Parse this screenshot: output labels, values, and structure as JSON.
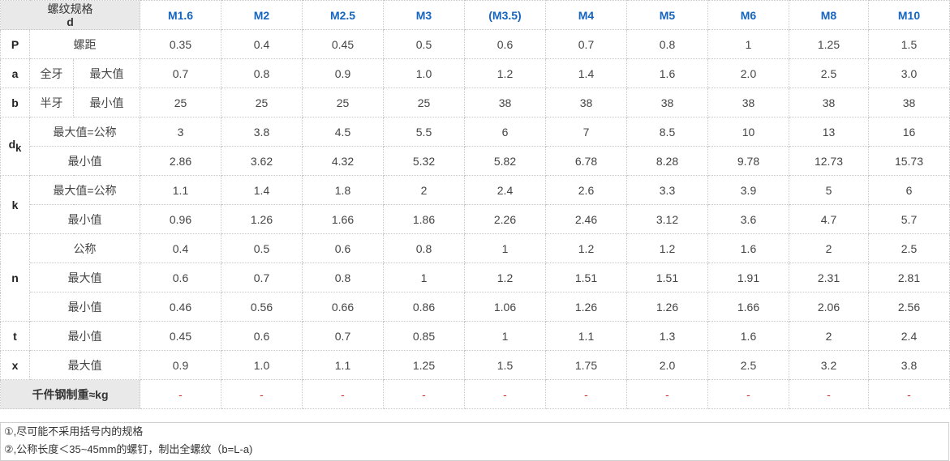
{
  "header": {
    "corner_line1": "螺纹规格",
    "corner_line2": "d",
    "sizes": [
      "M1.6",
      "M2",
      "M2.5",
      "M3",
      "(M3.5)",
      "M4",
      "M5",
      "M6",
      "M8",
      "M10"
    ]
  },
  "symbols": {
    "P": "P",
    "a": "a",
    "b": "b",
    "dk_main": "d",
    "dk_sub": "k",
    "k": "k",
    "n": "n",
    "t": "t",
    "x": "x"
  },
  "labels": {
    "pitch": "螺距",
    "full_thread": "全牙",
    "half_thread": "半牙",
    "max": "最大值",
    "min": "最小值",
    "max_nominal": "最大值=公称",
    "nominal": "公称",
    "weight": "千件钢制重≈kg"
  },
  "rows": {
    "P": [
      "0.35",
      "0.4",
      "0.45",
      "0.5",
      "0.6",
      "0.7",
      "0.8",
      "1",
      "1.25",
      "1.5"
    ],
    "a_max": [
      "0.7",
      "0.8",
      "0.9",
      "1.0",
      "1.2",
      "1.4",
      "1.6",
      "2.0",
      "2.5",
      "3.0"
    ],
    "b_min": [
      "25",
      "25",
      "25",
      "25",
      "38",
      "38",
      "38",
      "38",
      "38",
      "38"
    ],
    "dk_max": [
      "3",
      "3.8",
      "4.5",
      "5.5",
      "6",
      "7",
      "8.5",
      "10",
      "13",
      "16"
    ],
    "dk_min": [
      "2.86",
      "3.62",
      "4.32",
      "5.32",
      "5.82",
      "6.78",
      "8.28",
      "9.78",
      "12.73",
      "15.73"
    ],
    "k_max": [
      "1.1",
      "1.4",
      "1.8",
      "2",
      "2.4",
      "2.6",
      "3.3",
      "3.9",
      "5",
      "6"
    ],
    "k_min": [
      "0.96",
      "1.26",
      "1.66",
      "1.86",
      "2.26",
      "2.46",
      "3.12",
      "3.6",
      "4.7",
      "5.7"
    ],
    "n_nom": [
      "0.4",
      "0.5",
      "0.6",
      "0.8",
      "1",
      "1.2",
      "1.2",
      "1.6",
      "2",
      "2.5"
    ],
    "n_max": [
      "0.6",
      "0.7",
      "0.8",
      "1",
      "1.2",
      "1.51",
      "1.51",
      "1.91",
      "2.31",
      "2.81"
    ],
    "n_min": [
      "0.46",
      "0.56",
      "0.66",
      "0.86",
      "1.06",
      "1.26",
      "1.26",
      "1.66",
      "2.06",
      "2.56"
    ],
    "t_min": [
      "0.45",
      "0.6",
      "0.7",
      "0.85",
      "1",
      "1.1",
      "1.3",
      "1.6",
      "2",
      "2.4"
    ],
    "x_max": [
      "0.9",
      "1.0",
      "1.1",
      "1.25",
      "1.5",
      "1.75",
      "2.0",
      "2.5",
      "3.2",
      "3.8"
    ],
    "weight": [
      "-",
      "-",
      "-",
      "-",
      "-",
      "-",
      "-",
      "-",
      "-",
      "-"
    ]
  },
  "notes": [
    "①,尽可能不采用括号内的规格",
    "②,公称长度＜35~45mm的螺钉，制出全螺纹（b=L-a)"
  ],
  "colors": {
    "header_text": "#1565c0",
    "header_bg": "#e9e9e9",
    "dash": "#d32f2f"
  }
}
